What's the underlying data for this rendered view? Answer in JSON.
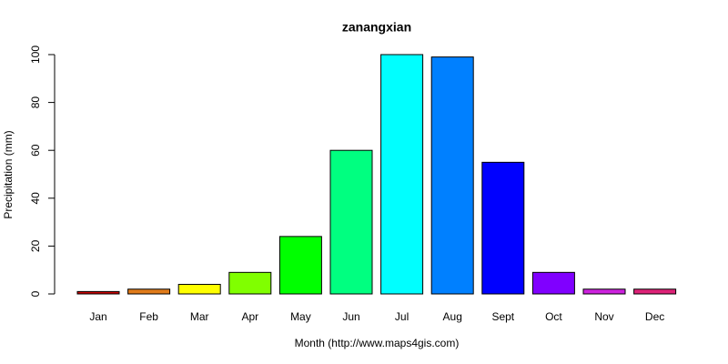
{
  "chart_data": {
    "type": "bar",
    "title": "zanangxian",
    "x_label": "Month (http://www.maps4gis.com)",
    "y_label": "Precipitation (mm)",
    "categories": [
      "Jan",
      "Feb",
      "Mar",
      "Apr",
      "May",
      "Jun",
      "Jul",
      "Aug",
      "Sept",
      "Oct",
      "Nov",
      "Dec"
    ],
    "values": [
      1,
      2,
      4,
      9,
      24,
      60,
      100,
      99,
      55,
      9,
      2,
      2
    ],
    "colors": [
      "#cc0000",
      "#e07b1a",
      "#ffff00",
      "#80ff00",
      "#00ff00",
      "#00ff80",
      "#00ffff",
      "#0080ff",
      "#0000ff",
      "#8000ff",
      "#cc22dd",
      "#dd2277"
    ],
    "ylim": [
      0,
      100
    ],
    "yticks": [
      0,
      20,
      40,
      60,
      80,
      100
    ],
    "grid": false
  }
}
